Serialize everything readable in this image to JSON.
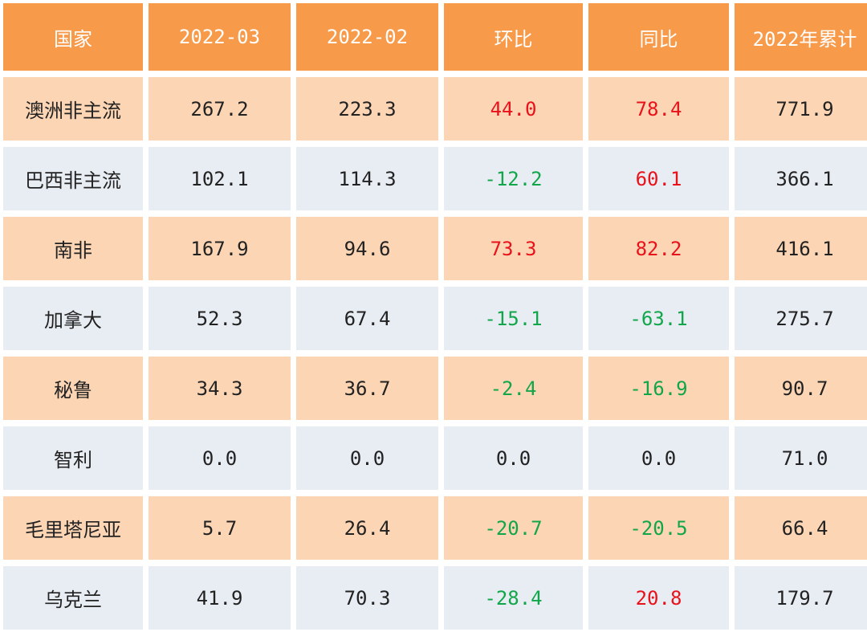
{
  "headers": [
    "国家",
    "2022-03",
    "2022-02",
    "环比",
    "同比",
    "2022年累计"
  ],
  "rows": [
    {
      "name": "澳洲非主流",
      "mar": "267.2",
      "feb": "223.3",
      "mom": "44.0",
      "yoy": "78.4",
      "ytd": "771.9"
    },
    {
      "name": "巴西非主流",
      "mar": "102.1",
      "feb": "114.3",
      "mom": "-12.2",
      "yoy": "60.1",
      "ytd": "366.1"
    },
    {
      "name": "南非",
      "mar": "167.9",
      "feb": "94.6",
      "mom": "73.3",
      "yoy": "82.2",
      "ytd": "416.1"
    },
    {
      "name": "加拿大",
      "mar": "52.3",
      "feb": "67.4",
      "mom": "-15.1",
      "yoy": "-63.1",
      "ytd": "275.7"
    },
    {
      "name": "秘鲁",
      "mar": "34.3",
      "feb": "36.7",
      "mom": "-2.4",
      "yoy": "-16.9",
      "ytd": "90.7"
    },
    {
      "name": "智利",
      "mar": "0.0",
      "feb": "0.0",
      "mom": "0.0",
      "yoy": "0.0",
      "ytd": "71.0"
    },
    {
      "name": "毛里塔尼亚",
      "mar": "5.7",
      "feb": "26.4",
      "mom": "-20.7",
      "yoy": "-20.5",
      "ytd": "66.4"
    },
    {
      "name": "乌克兰",
      "mar": "41.9",
      "feb": "70.3",
      "mom": "-28.4",
      "yoy": "20.8",
      "ytd": "179.7"
    }
  ],
  "colors": {
    "header_bg": "#f79a4a",
    "row_orange": "#fcd5b4",
    "row_blue": "#e8ecf3",
    "positive": "#e8121b",
    "negative": "#11a64a"
  }
}
